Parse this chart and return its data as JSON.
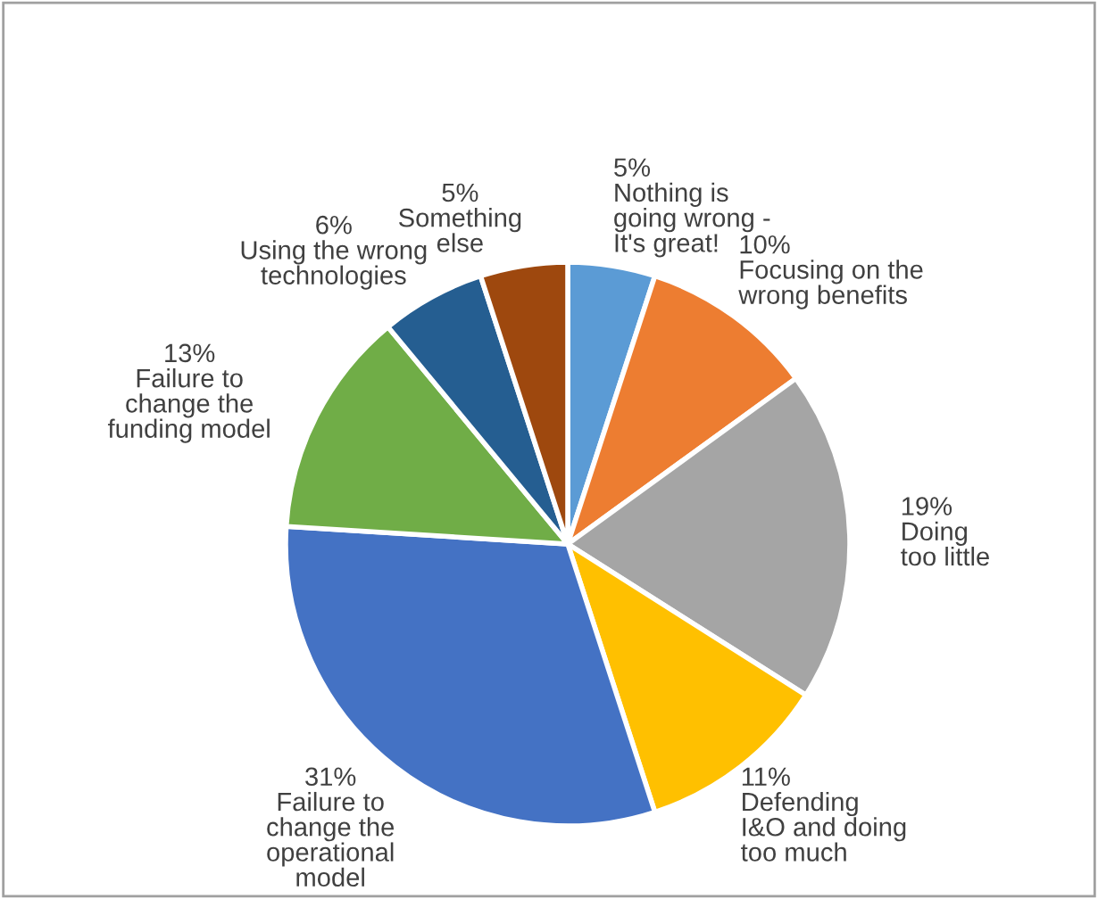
{
  "chart_data": {
    "type": "pie",
    "categories": [
      "Nothing is\ngoing wrong -\nIt's great!",
      "Focusing on the\nwrong benefits",
      "Doing\ntoo little",
      "Defending\nI&O and doing\ntoo much",
      "Failure to\nchange the\noperational\nmodel",
      "Failure to\nchange the\nfunding model",
      "Using the wrong\ntechnologies",
      "Something\nelse"
    ],
    "values": [
      5,
      10,
      19,
      11,
      31,
      13,
      6,
      5
    ],
    "value_labels": [
      "5%",
      "10%",
      "19%",
      "11%",
      "31%",
      "13%",
      "6%",
      "5%"
    ],
    "colors": [
      "#5b9bd5",
      "#ed7d31",
      "#a5a5a5",
      "#ffc000",
      "#4472c4",
      "#70ad47",
      "#255e91",
      "#9e480e"
    ]
  }
}
